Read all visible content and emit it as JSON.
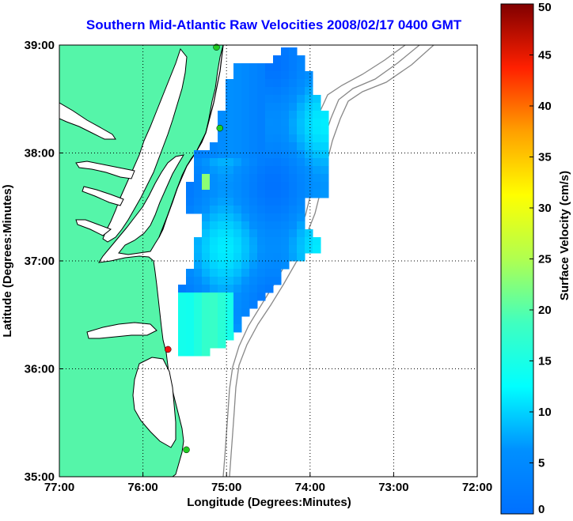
{
  "title": "Southern Mid-Atlantic Raw Velocities 2008/02/17 0400 GMT",
  "map": {
    "xlabel": "Longitude (Degrees:Minutes)",
    "ylabel": "Latitude (Degrees:Minutes)",
    "lon_range": [
      -77,
      -72
    ],
    "lat_range": [
      35,
      39
    ],
    "x_ticks": [
      "77:00",
      "76:00",
      "75:00",
      "74:00",
      "73:00",
      "72:00"
    ],
    "y_ticks": [
      "35:00",
      "36:00",
      "37:00",
      "38:00",
      "39:00"
    ],
    "grid": "dotted",
    "land_color": "#55f5a9",
    "coast_color": "#000000",
    "bathymetry_color": "#888888",
    "stations": [
      {
        "name": "station-north",
        "lon": -75.12,
        "lat": 38.98,
        "color": "#22cc22"
      },
      {
        "name": "station-cape-henlopen",
        "lon": -75.08,
        "lat": 38.23,
        "color": "#22cc22"
      },
      {
        "name": "station-cape-hatteras",
        "lon": -75.7,
        "lat": 36.18,
        "color": "#ee1111"
      },
      {
        "name": "station-south",
        "lon": -75.48,
        "lat": 35.25,
        "color": "#22cc22"
      }
    ]
  },
  "colorbar": {
    "label": "Surface Velocity (cm/s)",
    "ticks": [
      "0",
      "5",
      "10",
      "15",
      "20",
      "25",
      "30",
      "35",
      "40",
      "45",
      "50"
    ],
    "range": [
      0,
      50
    ],
    "colormap": "jet"
  }
}
